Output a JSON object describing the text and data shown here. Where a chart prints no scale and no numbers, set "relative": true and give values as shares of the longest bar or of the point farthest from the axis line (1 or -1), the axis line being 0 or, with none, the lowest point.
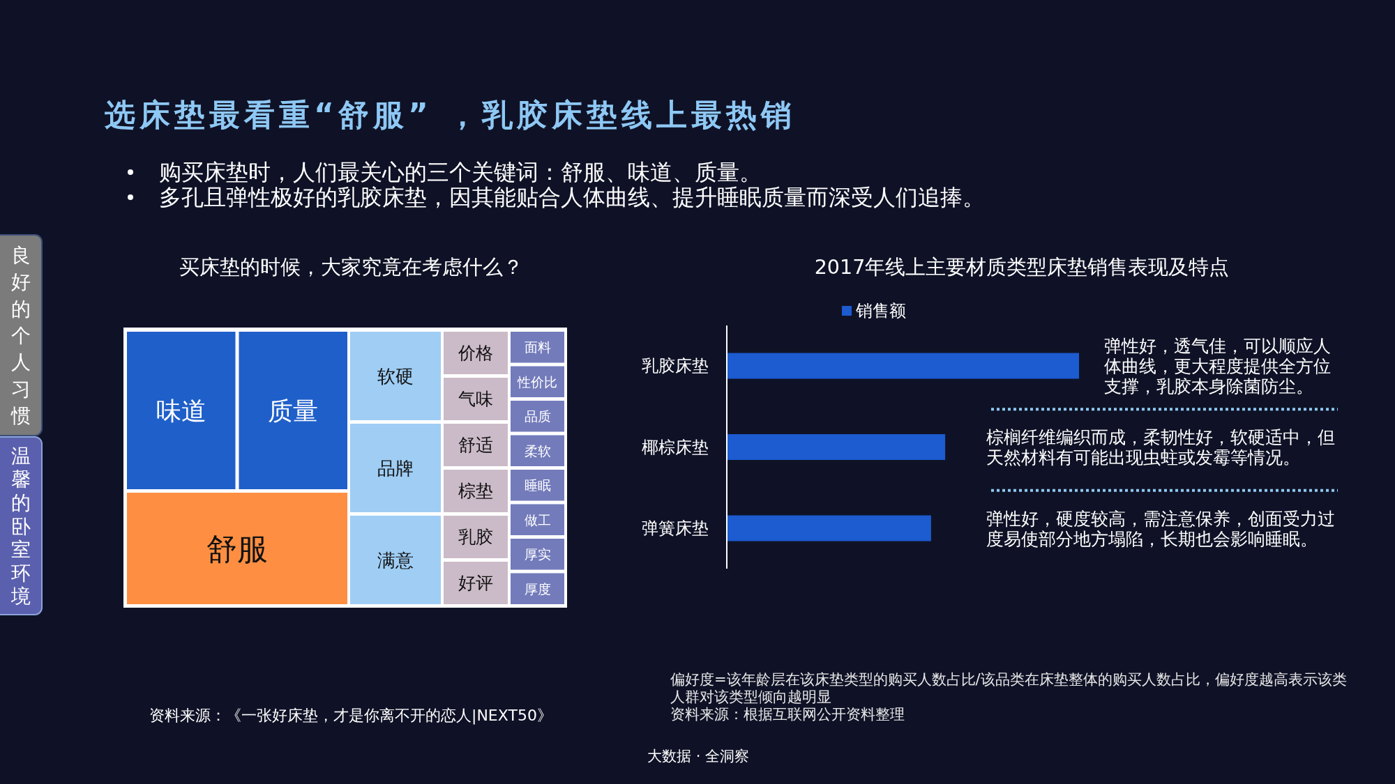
{
  "chart_data": [
    {
      "type": "other",
      "title": "选床垫最看重“舒服” ，乳胶床垫线上最热销",
      "annotations": [
        "购买床垫时，人们最关心的三个关键词：舒服、味道、质量。",
        "多孔且弹性极好的乳胶床垫，因其能贴合人体曲线、提升睡眠质量而深受人们追捧。",
        "良好的个人习惯",
        "温馨的卧室环境",
        "大数据 · 全洞察"
      ]
    },
    {
      "type": "other",
      "title": "买床垫的时候，大家究竟在考虑什么？",
      "categories": [
        "味道",
        "质量",
        "舒服",
        "软硬",
        "品牌",
        "满意",
        "价格",
        "气味",
        "舒适",
        "棕垫",
        "乳胶",
        "好评",
        "面料",
        "性价比",
        "品质",
        "柔软",
        "睡眠",
        "做工",
        "厚实",
        "厚度"
      ],
      "colors": [
        "#1f5fc9",
        "#1f5fc9",
        "#fe8f42",
        "#9fcdf4",
        "#9fcdf4",
        "#9fcdf4",
        "#cbbbc8",
        "#cbbbc8",
        "#cbbbc8",
        "#cbbbc8",
        "#cbbbc8",
        "#cbbbc8",
        "#737bbb",
        "#737bbb",
        "#737bbb",
        "#737bbb",
        "#737bbb",
        "#737bbb",
        "#737bbb",
        "#737bbb"
      ],
      "annotations": [
        "资料来源：《一张好床垫，才是你离不开的恋人|NEXT50》"
      ]
    },
    {
      "type": "bar",
      "orientation": "horizontal",
      "relative": true,
      "title": "2017年线上主要材质类型床垫销售表现及特点",
      "categories": [
        "乳胶床垫",
        "椰棕床垫",
        "弹簧床垫"
      ],
      "series": [
        {
          "name": "销售额",
          "color": "#1c5bd0",
          "values": [
            1,
            0.62,
            0.58
          ]
        }
      ],
      "legend": "top",
      "annotations": [
        "弹性好，透气佳，可以顺应人体曲线，更大程度提供全方位支撑，乳胶本身除菌防尘。",
        "棕榈纤维编织而成，柔韧性好，软硬适中，但天然材料有可能出现虫蛀或发霉等情况。",
        "弹性好，硬度较高，需注意保养，创面受力过度易使部分地方塌陷，长期也会影响睡眠。",
        "偏好度=该年龄层在该床垫类型的购买人数占比/该品类在床垫整体的购买人数占比，偏好度越高表示该类人群对该类型倾向越明显",
        "资料来源：根据互联网公开资料整理"
      ]
    }
  ]
}
